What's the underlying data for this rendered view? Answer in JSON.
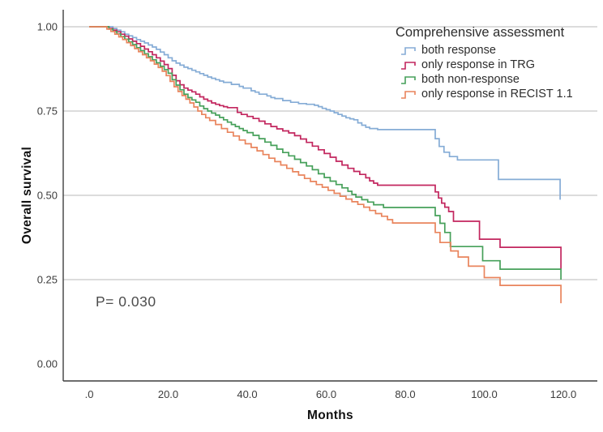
{
  "chart_data": {
    "type": "line",
    "subtype": "kaplan-meier-step",
    "title": "",
    "xlabel": "Months",
    "ylabel": "Overall survival",
    "legend_title": "Comprehensive assessment",
    "legend_position": "top-right",
    "annotation": "P= 0.030",
    "xlim": [
      0,
      120
    ],
    "ylim": [
      0,
      1
    ],
    "grid": "horizontal",
    "gridline_values": [
      1.0,
      0.75,
      0.5,
      0.25
    ],
    "xticks": {
      "values": [
        0,
        20,
        40,
        60,
        80,
        100,
        120
      ],
      "labels": [
        ".0",
        "20.0",
        "40.0",
        "60.0",
        "80.0",
        "100.0",
        "120.0"
      ]
    },
    "yticks": {
      "values": [
        1.0,
        0.75,
        0.5,
        0.25,
        0.0
      ],
      "labels": [
        "1.00",
        "0.75",
        "0.50",
        "0.25",
        "0.00"
      ]
    },
    "series": [
      {
        "name": "both response",
        "color": "#85ACD6",
        "points": [
          [
            0,
            1.0
          ],
          [
            5,
            1.0
          ],
          [
            6,
            0.995
          ],
          [
            7,
            0.99
          ],
          [
            8,
            0.985
          ],
          [
            9,
            0.978
          ],
          [
            10,
            0.973
          ],
          [
            11,
            0.968
          ],
          [
            12,
            0.962
          ],
          [
            13,
            0.957
          ],
          [
            14,
            0.952
          ],
          [
            15,
            0.946
          ],
          [
            16,
            0.94
          ],
          [
            17,
            0.933
          ],
          [
            18,
            0.925
          ],
          [
            19,
            0.917
          ],
          [
            20,
            0.908
          ],
          [
            21,
            0.899
          ],
          [
            22,
            0.892
          ],
          [
            23,
            0.886
          ],
          [
            24,
            0.88
          ],
          [
            25,
            0.876
          ],
          [
            26,
            0.871
          ],
          [
            27,
            0.866
          ],
          [
            28,
            0.861
          ],
          [
            29,
            0.856
          ],
          [
            30,
            0.851
          ],
          [
            31,
            0.847
          ],
          [
            32,
            0.843
          ],
          [
            33,
            0.839
          ],
          [
            34,
            0.835
          ],
          [
            36,
            0.829
          ],
          [
            38,
            0.823
          ],
          [
            39,
            0.818
          ],
          [
            41,
            0.81
          ],
          [
            42,
            0.806
          ],
          [
            43,
            0.8
          ],
          [
            45,
            0.795
          ],
          [
            46,
            0.79
          ],
          [
            47,
            0.787
          ],
          [
            49,
            0.781
          ],
          [
            51,
            0.776
          ],
          [
            53,
            0.772
          ],
          [
            55,
            0.77
          ],
          [
            57,
            0.767
          ],
          [
            58,
            0.763
          ],
          [
            59,
            0.758
          ],
          [
            60,
            0.754
          ],
          [
            61,
            0.75
          ],
          [
            62,
            0.745
          ],
          [
            63,
            0.74
          ],
          [
            64,
            0.735
          ],
          [
            65,
            0.73
          ],
          [
            66,
            0.727
          ],
          [
            67,
            0.724
          ],
          [
            68,
            0.715
          ],
          [
            69,
            0.708
          ],
          [
            70,
            0.702
          ],
          [
            71,
            0.698
          ],
          [
            73,
            0.695
          ],
          [
            87.6,
            0.668
          ],
          [
            88.6,
            0.645
          ],
          [
            89.8,
            0.628
          ],
          [
            91.2,
            0.615
          ],
          [
            93.2,
            0.605
          ],
          [
            103.6,
            0.547
          ],
          [
            119.2,
            0.487
          ]
        ]
      },
      {
        "name": "only response in TRG",
        "color": "#C2265E",
        "points": [
          [
            0,
            1.0
          ],
          [
            4,
            1.0
          ],
          [
            5,
            0.995
          ],
          [
            6,
            0.99
          ],
          [
            7,
            0.985
          ],
          [
            8,
            0.978
          ],
          [
            9,
            0.972
          ],
          [
            10,
            0.964
          ],
          [
            11,
            0.957
          ],
          [
            12,
            0.95
          ],
          [
            13,
            0.942
          ],
          [
            14,
            0.934
          ],
          [
            15,
            0.926
          ],
          [
            16,
            0.917
          ],
          [
            17,
            0.908
          ],
          [
            18,
            0.898
          ],
          [
            19,
            0.888
          ],
          [
            20,
            0.876
          ],
          [
            21,
            0.856
          ],
          [
            22,
            0.84
          ],
          [
            23,
            0.828
          ],
          [
            24,
            0.818
          ],
          [
            25,
            0.812
          ],
          [
            26,
            0.807
          ],
          [
            27,
            0.8
          ],
          [
            28,
            0.792
          ],
          [
            29,
            0.785
          ],
          [
            30,
            0.78
          ],
          [
            31,
            0.774
          ],
          [
            32,
            0.77
          ],
          [
            33,
            0.766
          ],
          [
            34,
            0.763
          ],
          [
            35,
            0.76
          ],
          [
            37.5,
            0.746
          ],
          [
            38.5,
            0.74
          ],
          [
            40,
            0.734
          ],
          [
            41.5,
            0.728
          ],
          [
            43,
            0.72
          ],
          [
            44.5,
            0.712
          ],
          [
            46,
            0.704
          ],
          [
            47.5,
            0.697
          ],
          [
            49,
            0.691
          ],
          [
            50.5,
            0.685
          ],
          [
            52,
            0.677
          ],
          [
            53.5,
            0.667
          ],
          [
            55,
            0.657
          ],
          [
            56.5,
            0.646
          ],
          [
            58,
            0.635
          ],
          [
            59.5,
            0.624
          ],
          [
            61,
            0.613
          ],
          [
            62.5,
            0.601
          ],
          [
            64,
            0.59
          ],
          [
            65.5,
            0.58
          ],
          [
            67,
            0.571
          ],
          [
            68.5,
            0.562
          ],
          [
            70,
            0.552
          ],
          [
            71,
            0.543
          ],
          [
            72,
            0.536
          ],
          [
            73,
            0.53
          ],
          [
            87.6,
            0.51
          ],
          [
            88.4,
            0.492
          ],
          [
            89.2,
            0.477
          ],
          [
            90,
            0.465
          ],
          [
            91,
            0.452
          ],
          [
            92.2,
            0.423
          ],
          [
            98.8,
            0.37
          ],
          [
            104,
            0.346
          ],
          [
            119.4,
            0.28
          ]
        ]
      },
      {
        "name": "both non-response",
        "color": "#46A05A",
        "points": [
          [
            0,
            1.0
          ],
          [
            4,
            1.0
          ],
          [
            5,
            0.993
          ],
          [
            6,
            0.986
          ],
          [
            7,
            0.979
          ],
          [
            8,
            0.971
          ],
          [
            9,
            0.963
          ],
          [
            10,
            0.955
          ],
          [
            11,
            0.947
          ],
          [
            12,
            0.938
          ],
          [
            13,
            0.929
          ],
          [
            14,
            0.92
          ],
          [
            15,
            0.911
          ],
          [
            16,
            0.902
          ],
          [
            17,
            0.893
          ],
          [
            18,
            0.883
          ],
          [
            19,
            0.873
          ],
          [
            20,
            0.862
          ],
          [
            21,
            0.843
          ],
          [
            22,
            0.827
          ],
          [
            23,
            0.813
          ],
          [
            24,
            0.8
          ],
          [
            25,
            0.79
          ],
          [
            26,
            0.783
          ],
          [
            27,
            0.776
          ],
          [
            28,
            0.765
          ],
          [
            29,
            0.757
          ],
          [
            30,
            0.75
          ],
          [
            31,
            0.744
          ],
          [
            32,
            0.738
          ],
          [
            33,
            0.731
          ],
          [
            34,
            0.724
          ],
          [
            35,
            0.717
          ],
          [
            36,
            0.71
          ],
          [
            37,
            0.704
          ],
          [
            38,
            0.698
          ],
          [
            39,
            0.692
          ],
          [
            40,
            0.686
          ],
          [
            41.5,
            0.678
          ],
          [
            43,
            0.668
          ],
          [
            44.5,
            0.658
          ],
          [
            46,
            0.648
          ],
          [
            47.5,
            0.637
          ],
          [
            49,
            0.627
          ],
          [
            50.5,
            0.617
          ],
          [
            52,
            0.607
          ],
          [
            53.5,
            0.597
          ],
          [
            55,
            0.587
          ],
          [
            56.5,
            0.576
          ],
          [
            58,
            0.564
          ],
          [
            59.5,
            0.553
          ],
          [
            61,
            0.542
          ],
          [
            62.5,
            0.532
          ],
          [
            64,
            0.522
          ],
          [
            65.5,
            0.512
          ],
          [
            66.5,
            0.503
          ],
          [
            67.5,
            0.495
          ],
          [
            69,
            0.487
          ],
          [
            70.5,
            0.48
          ],
          [
            72,
            0.472
          ],
          [
            74.5,
            0.464
          ],
          [
            87.6,
            0.44
          ],
          [
            88.8,
            0.417
          ],
          [
            90,
            0.39
          ],
          [
            91.4,
            0.348
          ],
          [
            99.6,
            0.306
          ],
          [
            104,
            0.281
          ],
          [
            119.4,
            0.25
          ]
        ]
      },
      {
        "name": "only response in RECIST 1.1",
        "color": "#E9845C",
        "points": [
          [
            0,
            1.0
          ],
          [
            3.5,
            1.0
          ],
          [
            4.5,
            0.993
          ],
          [
            5.5,
            0.986
          ],
          [
            6.5,
            0.978
          ],
          [
            7.5,
            0.97
          ],
          [
            8.5,
            0.962
          ],
          [
            9.5,
            0.953
          ],
          [
            10.5,
            0.944
          ],
          [
            11.5,
            0.935
          ],
          [
            12.5,
            0.926
          ],
          [
            13.5,
            0.917
          ],
          [
            14.5,
            0.908
          ],
          [
            15.5,
            0.899
          ],
          [
            16.5,
            0.889
          ],
          [
            17.5,
            0.879
          ],
          [
            18.5,
            0.868
          ],
          [
            19.5,
            0.855
          ],
          [
            20.5,
            0.838
          ],
          [
            21.5,
            0.822
          ],
          [
            22.5,
            0.808
          ],
          [
            23.5,
            0.796
          ],
          [
            24.5,
            0.785
          ],
          [
            25.5,
            0.774
          ],
          [
            26.5,
            0.762
          ],
          [
            27.5,
            0.75
          ],
          [
            28.5,
            0.74
          ],
          [
            29.5,
            0.73
          ],
          [
            30.5,
            0.722
          ],
          [
            32,
            0.71
          ],
          [
            33.5,
            0.698
          ],
          [
            35,
            0.687
          ],
          [
            36.5,
            0.676
          ],
          [
            38,
            0.664
          ],
          [
            39.5,
            0.653
          ],
          [
            41,
            0.642
          ],
          [
            42.5,
            0.632
          ],
          [
            44,
            0.621
          ],
          [
            45.5,
            0.61
          ],
          [
            47,
            0.6
          ],
          [
            48.5,
            0.59
          ],
          [
            50,
            0.58
          ],
          [
            51.5,
            0.57
          ],
          [
            53,
            0.56
          ],
          [
            54.5,
            0.55
          ],
          [
            56,
            0.541
          ],
          [
            57.5,
            0.532
          ],
          [
            59,
            0.524
          ],
          [
            60.5,
            0.515
          ],
          [
            62,
            0.506
          ],
          [
            63.5,
            0.497
          ],
          [
            65,
            0.489
          ],
          [
            66.5,
            0.481
          ],
          [
            68,
            0.473
          ],
          [
            69.5,
            0.465
          ],
          [
            71,
            0.455
          ],
          [
            72.5,
            0.446
          ],
          [
            74,
            0.438
          ],
          [
            75.5,
            0.428
          ],
          [
            76.8,
            0.418
          ],
          [
            87.6,
            0.39
          ],
          [
            88.8,
            0.36
          ],
          [
            91.5,
            0.335
          ],
          [
            93.4,
            0.317
          ],
          [
            96,
            0.29
          ],
          [
            100,
            0.256
          ],
          [
            104,
            0.233
          ],
          [
            119.4,
            0.18
          ]
        ]
      }
    ]
  },
  "colors": {
    "background": "#ffffff",
    "gridline": "#b9b9b9",
    "axis": "#3f3f3f",
    "tick_text": "#3c3c3c"
  }
}
